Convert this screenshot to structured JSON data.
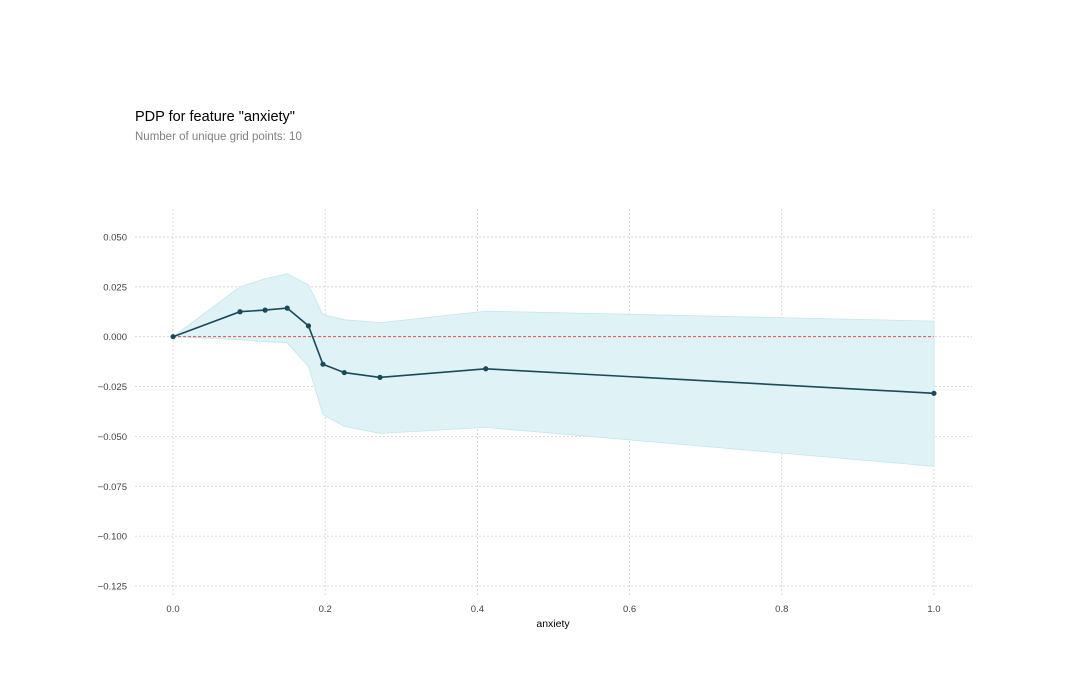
{
  "chart_data": {
    "type": "line",
    "title": "PDP for feature \"anxiety\"",
    "subtitle": "Number of unique grid points: 10",
    "xlabel": "anxiety",
    "ylabel": "",
    "xlim": [
      -0.05,
      1.05
    ],
    "ylim": [
      -0.13,
      0.064
    ],
    "x_ticks": [
      0.0,
      0.2,
      0.4,
      0.6,
      0.8,
      1.0
    ],
    "x_tick_labels": [
      "0.0",
      "0.2",
      "0.4",
      "0.6",
      "0.8",
      "1.0"
    ],
    "y_ticks": [
      0.05,
      0.025,
      0.0,
      -0.025,
      -0.05,
      -0.075,
      -0.1,
      -0.125
    ],
    "y_tick_labels": [
      "0.050",
      "0.025",
      "0.000",
      "−0.025",
      "−0.050",
      "−0.075",
      "−0.100",
      "−0.125"
    ],
    "grid": true,
    "reference_line_y": 0.0,
    "series": [
      {
        "x": [
          0.0,
          0.088,
          0.121,
          0.15,
          0.178,
          0.197,
          0.225,
          0.272,
          0.411,
          1.0
        ],
        "y": [
          0.0,
          0.0125,
          0.0133,
          0.0143,
          0.0054,
          -0.0138,
          -0.018,
          -0.0204,
          -0.0161,
          -0.0284
        ],
        "upper": [
          0.0,
          0.025,
          0.029,
          0.0315,
          0.026,
          0.011,
          0.0085,
          0.007,
          0.0128,
          0.0078
        ],
        "lower": [
          0.0,
          -0.0015,
          -0.0025,
          -0.003,
          -0.015,
          -0.039,
          -0.045,
          -0.0485,
          -0.0455,
          -0.065
        ]
      }
    ],
    "colors": {
      "line": "#1a4a5a",
      "band": "#dff2f6",
      "band_edge": "#c3e6ee",
      "reference": "#d9534f",
      "grid": "#cfcfcf",
      "title": "#000000",
      "subtitle": "#808080"
    }
  }
}
